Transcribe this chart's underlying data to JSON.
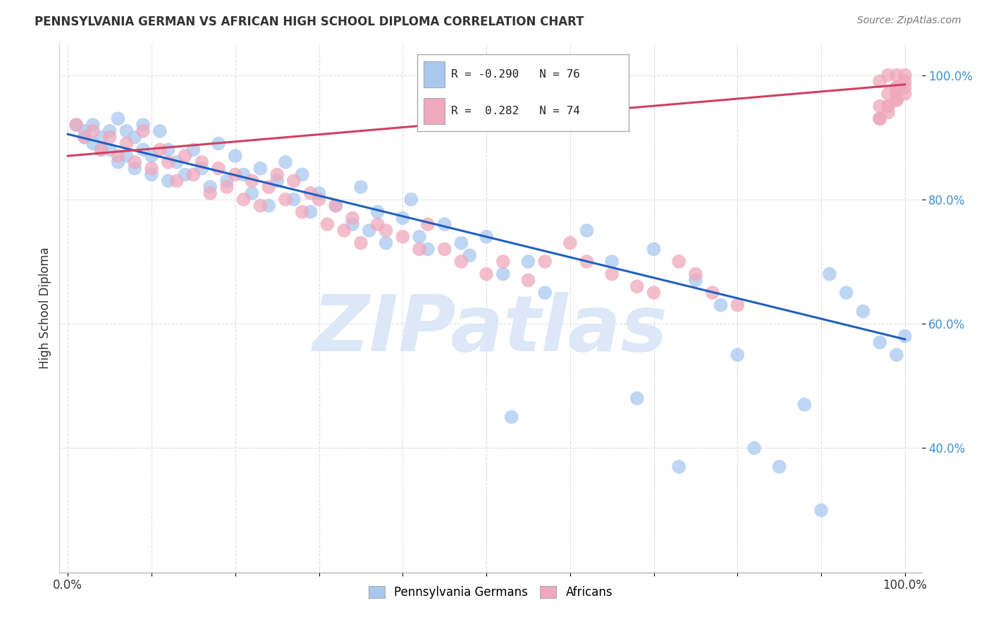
{
  "title": "PENNSYLVANIA GERMAN VS AFRICAN HIGH SCHOOL DIPLOMA CORRELATION CHART",
  "source": "Source: ZipAtlas.com",
  "ylabel": "High School Diploma",
  "legend_blue_r": "R = -0.290",
  "legend_blue_n": "N = 76",
  "legend_pink_r": "R =  0.282",
  "legend_pink_n": "N = 74",
  "x_tick_labels": [
    "0.0%",
    "",
    "",
    "",
    "",
    "",
    "",
    "",
    "",
    "",
    "100.0%"
  ],
  "x_ticks": [
    0,
    10,
    20,
    30,
    40,
    50,
    60,
    70,
    80,
    90,
    100
  ],
  "y_tick_labels": [
    "40.0%",
    "60.0%",
    "80.0%",
    "100.0%"
  ],
  "y_ticks": [
    40,
    60,
    80,
    100
  ],
  "color_blue": "#A8C8F0",
  "color_pink": "#F0A8BC",
  "line_color_blue": "#2060C0",
  "line_color_pink": "#D04060",
  "y_tick_color": "#4090D0",
  "background_color": "#FFFFFF",
  "grid_color": "#DDDDDD",
  "watermark_color": "#DCE8F8",
  "ylim_min": 20,
  "ylim_max": 105,
  "xlim_min": -1,
  "xlim_max": 102,
  "blue_line_x0": 0,
  "blue_line_y0": 90.5,
  "blue_line_x1": 100,
  "blue_line_y1": 57.5,
  "pink_line_x0": 0,
  "pink_line_y0": 87.0,
  "pink_line_x1": 100,
  "pink_line_y1": 98.5,
  "blue_x": [
    1,
    2,
    2,
    3,
    3,
    4,
    4,
    5,
    5,
    6,
    6,
    7,
    7,
    8,
    8,
    9,
    9,
    10,
    10,
    11,
    12,
    12,
    13,
    14,
    15,
    16,
    17,
    18,
    19,
    20,
    21,
    22,
    23,
    24,
    25,
    26,
    27,
    28,
    29,
    30,
    32,
    34,
    35,
    36,
    37,
    38,
    40,
    41,
    42,
    43,
    45,
    47,
    48,
    50,
    52,
    53,
    55,
    57,
    62,
    65,
    68,
    70,
    73,
    75,
    78,
    80,
    82,
    85,
    88,
    90,
    91,
    93,
    95,
    97,
    99,
    100
  ],
  "blue_y": [
    92,
    91,
    90,
    92,
    89,
    90,
    88,
    91,
    88,
    93,
    86,
    91,
    87,
    90,
    85,
    88,
    92,
    87,
    84,
    91,
    88,
    83,
    86,
    84,
    88,
    85,
    82,
    89,
    83,
    87,
    84,
    81,
    85,
    79,
    83,
    86,
    80,
    84,
    78,
    81,
    79,
    76,
    82,
    75,
    78,
    73,
    77,
    80,
    74,
    72,
    76,
    73,
    71,
    74,
    68,
    45,
    70,
    65,
    75,
    70,
    48,
    72,
    37,
    67,
    63,
    55,
    40,
    37,
    47,
    30,
    68,
    65,
    62,
    57,
    55,
    58
  ],
  "pink_x": [
    1,
    2,
    3,
    4,
    5,
    6,
    7,
    8,
    9,
    10,
    11,
    12,
    13,
    14,
    15,
    16,
    17,
    18,
    19,
    20,
    21,
    22,
    23,
    24,
    25,
    26,
    27,
    28,
    29,
    30,
    31,
    32,
    33,
    34,
    35,
    37,
    38,
    40,
    42,
    43,
    45,
    47,
    50,
    52,
    55,
    57,
    60,
    62,
    65,
    68,
    70,
    73,
    75,
    77,
    80,
    97,
    98,
    99,
    100,
    99,
    98,
    100,
    99,
    98,
    97,
    99,
    100,
    98,
    97,
    99,
    100,
    98,
    97,
    99
  ],
  "pink_y": [
    92,
    90,
    91,
    88,
    90,
    87,
    89,
    86,
    91,
    85,
    88,
    86,
    83,
    87,
    84,
    86,
    81,
    85,
    82,
    84,
    80,
    83,
    79,
    82,
    84,
    80,
    83,
    78,
    81,
    80,
    76,
    79,
    75,
    77,
    73,
    76,
    75,
    74,
    72,
    76,
    72,
    70,
    68,
    70,
    67,
    70,
    73,
    70,
    68,
    66,
    65,
    70,
    68,
    65,
    63,
    99,
    100,
    98,
    100,
    96,
    94,
    98,
    97,
    95,
    93,
    100,
    99,
    97,
    95,
    98,
    97,
    95,
    93,
    96
  ]
}
